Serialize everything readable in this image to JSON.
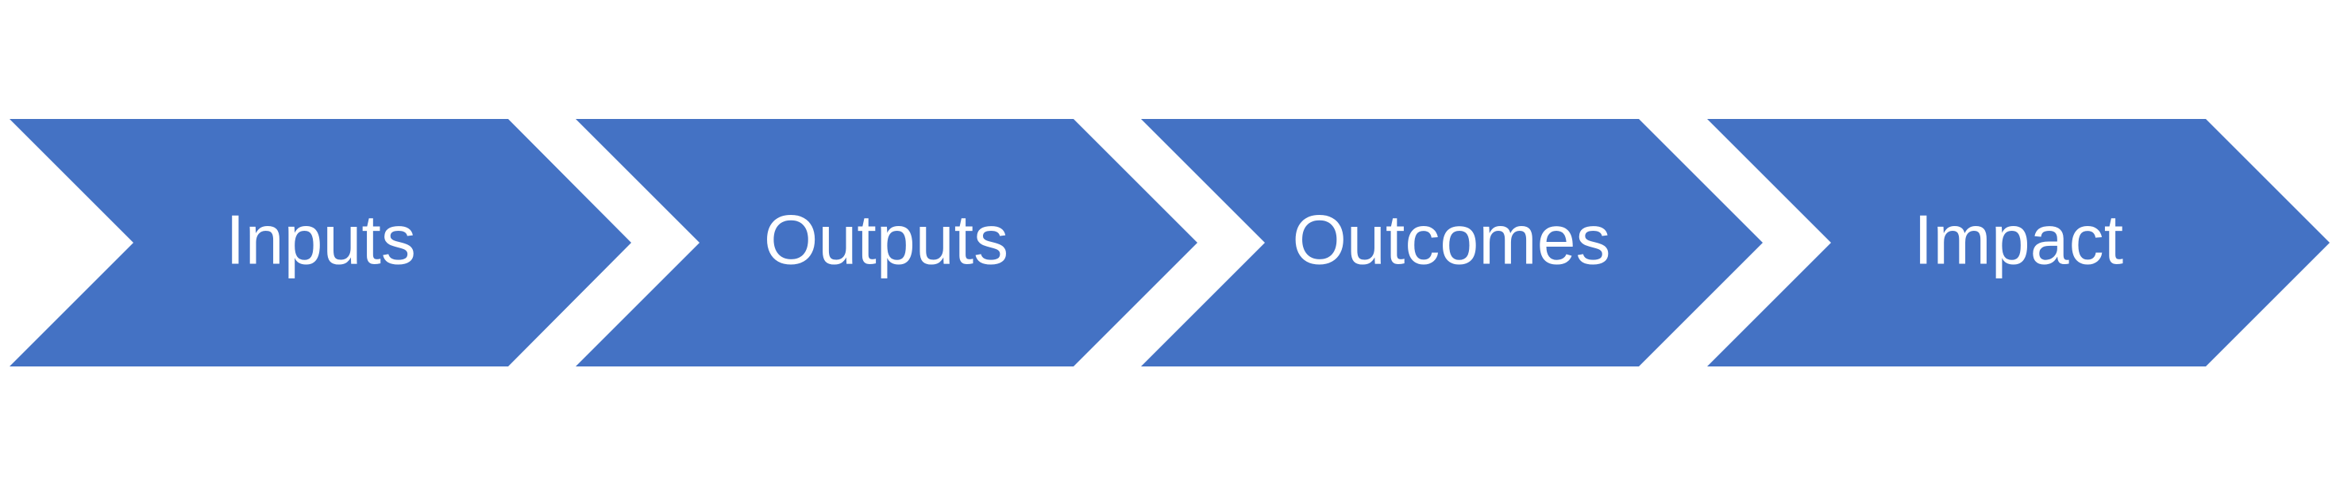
{
  "diagram": {
    "type": "process-chevrons",
    "fill_color": "#4472C4",
    "text_color": "#FFFFFF",
    "steps": [
      {
        "label": "Inputs"
      },
      {
        "label": "Outputs"
      },
      {
        "label": "Outcomes"
      },
      {
        "label": "Impact"
      }
    ]
  }
}
